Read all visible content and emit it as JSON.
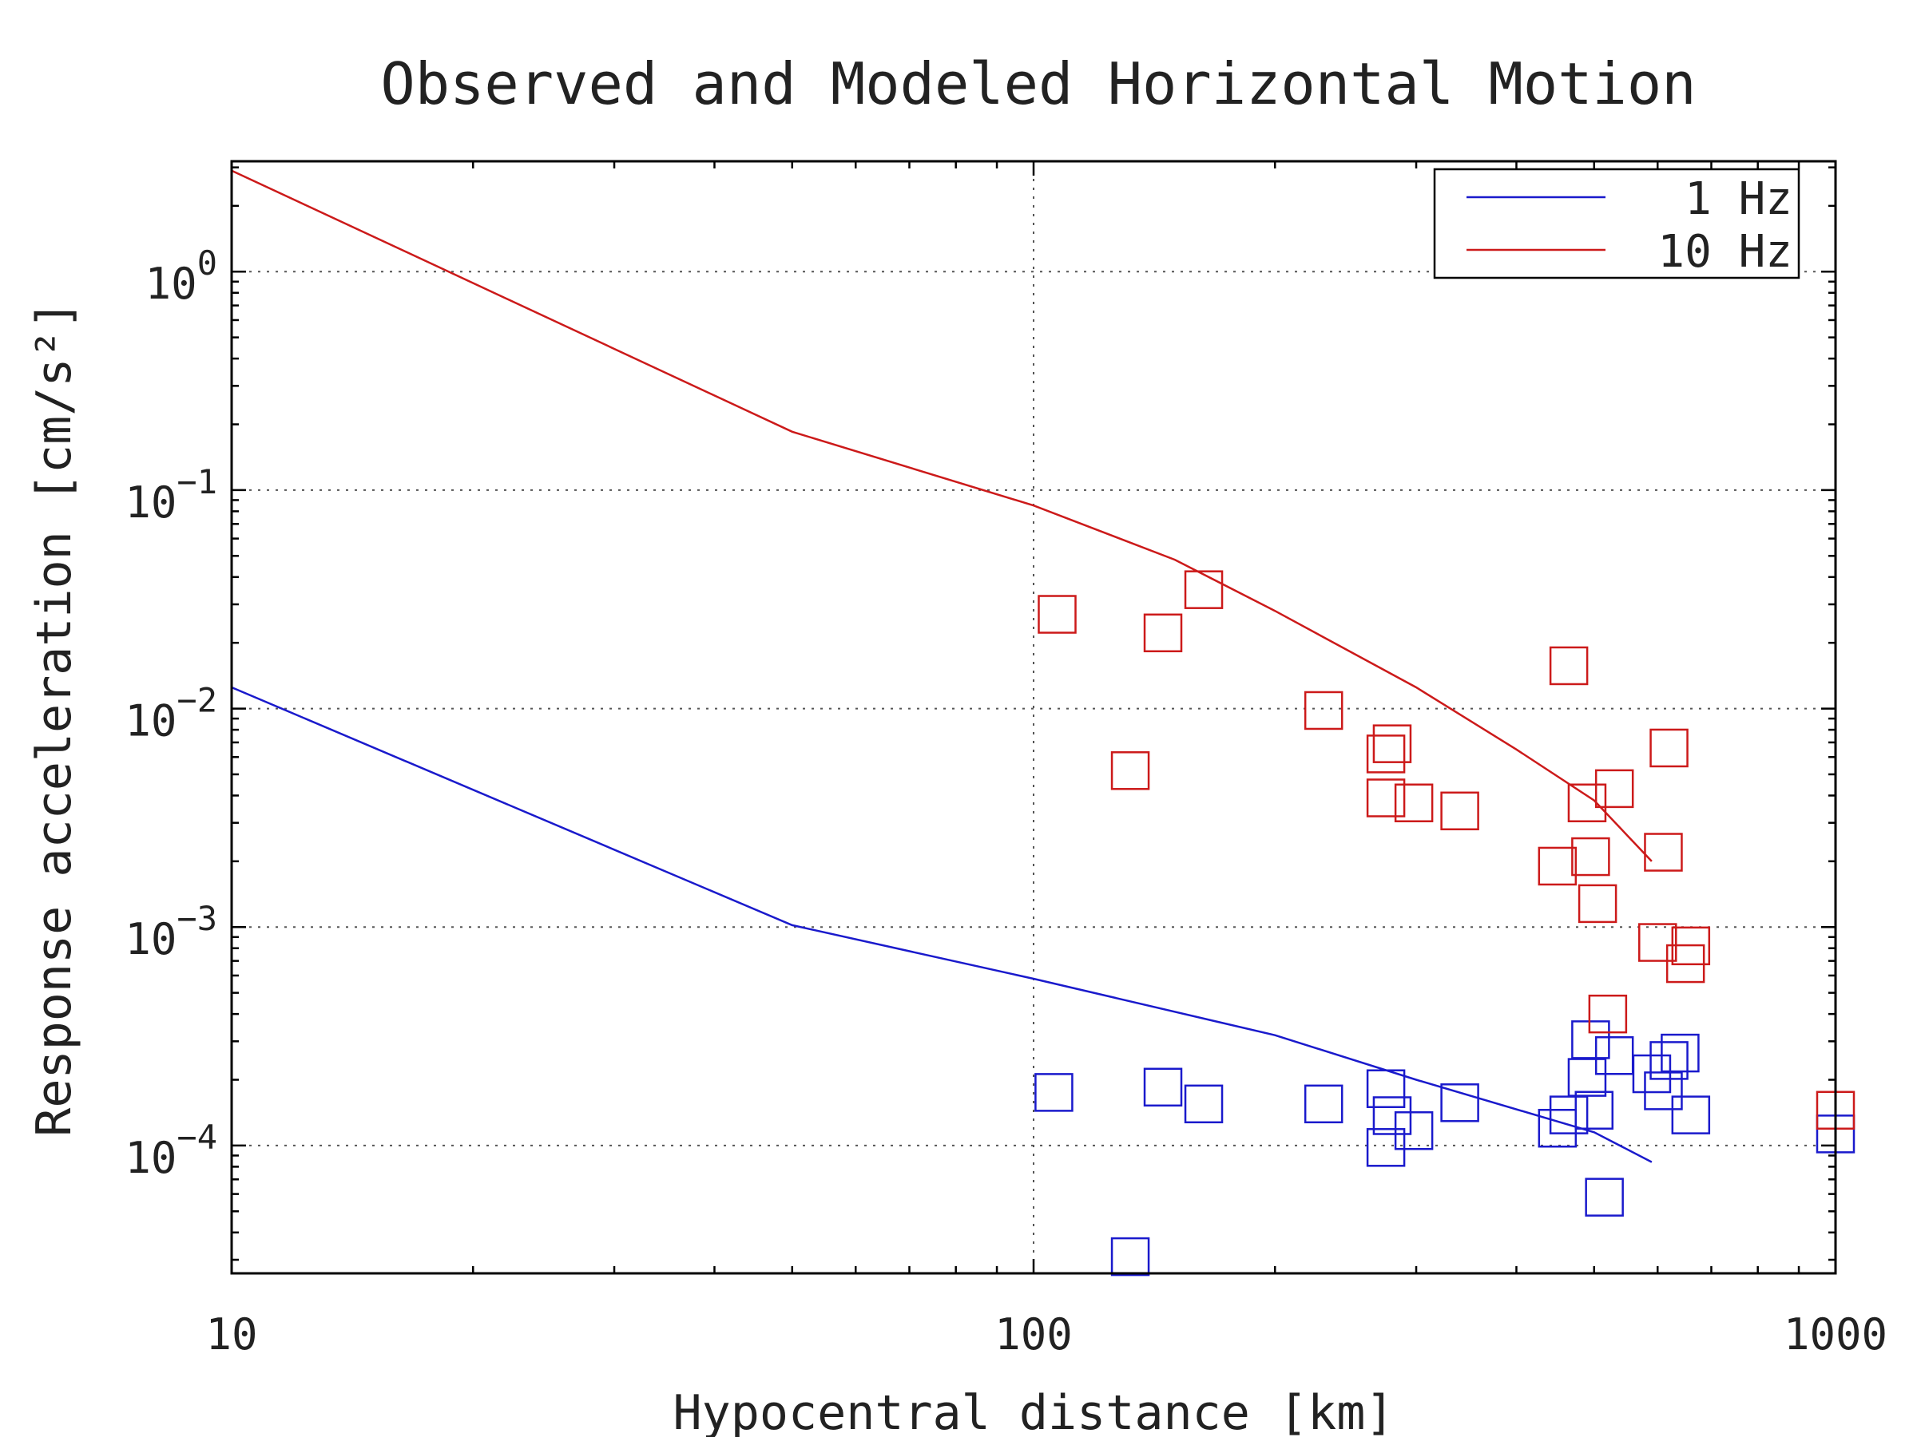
{
  "chart_data": {
    "type": "line",
    "title": "Observed and Modeled Horizontal Motion",
    "xlabel": "Hypocentral distance [km]",
    "ylabel": "Response acceleration [cm/s²]",
    "x_scale": "log",
    "y_scale": "log",
    "xlim": [
      10,
      1000
    ],
    "ylim": [
      2.6e-05,
      3.2
    ],
    "grid": true,
    "legend_position": "top-right",
    "x_ticks": [
      {
        "value": 10,
        "label": "10"
      },
      {
        "value": 100,
        "label": "100"
      },
      {
        "value": 1000,
        "label": "1000"
      }
    ],
    "y_ticks": [
      {
        "value": 1,
        "base": "10",
        "exp": "0"
      },
      {
        "value": 0.1,
        "base": "10",
        "exp": "−1"
      },
      {
        "value": 0.01,
        "base": "10",
        "exp": "−2"
      },
      {
        "value": 0.001,
        "base": "10",
        "exp": "−3"
      },
      {
        "value": 0.0001,
        "base": "10",
        "exp": "−4"
      }
    ],
    "series": [
      {
        "name": "1 Hz",
        "color": "#1a1acc",
        "line": [
          [
            10,
            0.0125
          ],
          [
            50,
            0.00102
          ],
          [
            100,
            0.00058
          ],
          [
            200,
            0.00032
          ],
          [
            300,
            0.0002
          ],
          [
            500,
            0.000115
          ],
          [
            590,
            8.4e-05
          ]
        ],
        "observed": [
          [
            106,
            0.000175
          ],
          [
            132,
            3.1e-05
          ],
          [
            145,
            0.000185
          ],
          [
            163,
            0.000155
          ],
          [
            230,
            0.000155
          ],
          [
            275,
            0.000182
          ],
          [
            280,
            0.000137
          ],
          [
            275,
            9.8e-05
          ],
          [
            298,
            0.000117
          ],
          [
            340,
            0.000157
          ],
          [
            450,
            0.00012
          ],
          [
            465,
            0.000138
          ],
          [
            490,
            0.000205
          ],
          [
            495,
            0.000305
          ],
          [
            500,
            0.000145
          ],
          [
            515,
            5.8e-05
          ],
          [
            530,
            0.000258
          ],
          [
            590,
            0.000213
          ],
          [
            610,
            0.000178
          ],
          [
            620,
            0.000245
          ],
          [
            640,
            0.000265
          ],
          [
            660,
            0.000138
          ],
          [
            1000,
            0.000113
          ]
        ]
      },
      {
        "name": "10 Hz",
        "color": "#cc1a1a",
        "line": [
          [
            10,
            2.9
          ],
          [
            50,
            0.185
          ],
          [
            100,
            0.085
          ],
          [
            150,
            0.048
          ],
          [
            200,
            0.028
          ],
          [
            300,
            0.0125
          ],
          [
            400,
            0.0065
          ],
          [
            500,
            0.0038
          ],
          [
            590,
            0.002
          ]
        ],
        "observed": [
          [
            107,
            0.027
          ],
          [
            132,
            0.0052
          ],
          [
            145,
            0.0222
          ],
          [
            163,
            0.035
          ],
          [
            230,
            0.0098
          ],
          [
            275,
            0.0062
          ],
          [
            280,
            0.0069
          ],
          [
            275,
            0.0039
          ],
          [
            298,
            0.0037
          ],
          [
            340,
            0.0034
          ],
          [
            450,
            0.0019
          ],
          [
            465,
            0.0157
          ],
          [
            490,
            0.0037
          ],
          [
            495,
            0.0021
          ],
          [
            505,
            0.00128
          ],
          [
            520,
            0.0004
          ],
          [
            530,
            0.0043
          ],
          [
            600,
            0.00085
          ],
          [
            610,
            0.0022
          ],
          [
            620,
            0.0066
          ],
          [
            650,
            0.00068
          ],
          [
            660,
            0.00082
          ],
          [
            1000,
            0.000145
          ]
        ]
      }
    ]
  }
}
